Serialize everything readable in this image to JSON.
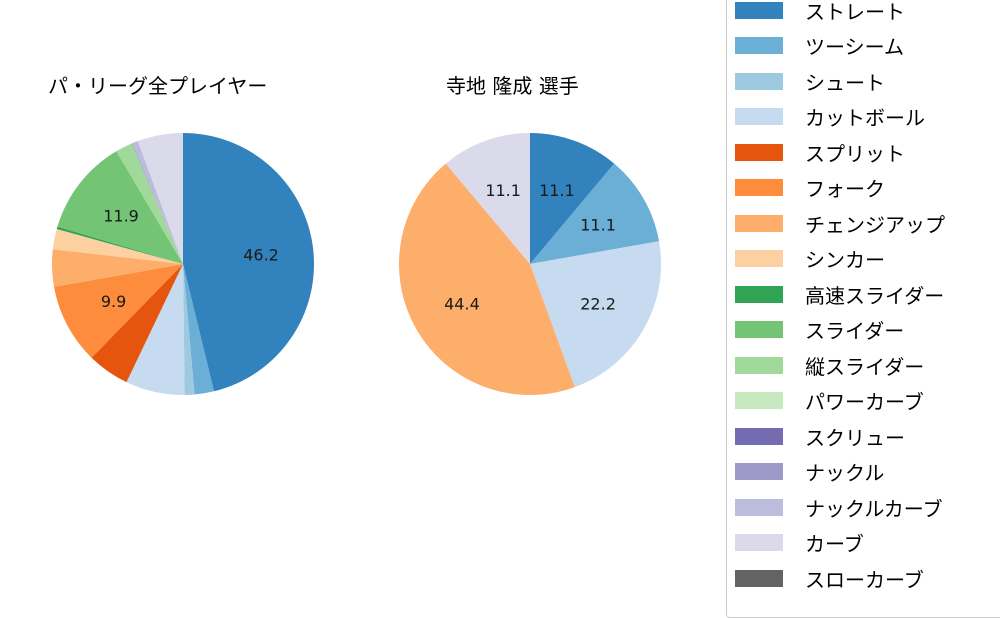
{
  "chart_data": [
    {
      "type": "pie",
      "title": "パ・リーグ全プレイヤー",
      "categories": [
        "ストレート",
        "ツーシーム",
        "シュート",
        "カットボール",
        "スプリット",
        "フォーク",
        "チェンジアップ",
        "シンカー",
        "高速スライダー",
        "スライダー",
        "縦スライダー",
        "パワーカーブ",
        "スクリュー",
        "ナックル",
        "ナックルカーブ",
        "カーブ",
        "スローカーブ"
      ],
      "values": [
        46.2,
        2.4,
        1.2,
        7.3,
        5.2,
        9.9,
        4.6,
        2.5,
        0.3,
        11.9,
        2.1,
        0.0,
        0.0,
        0.1,
        0.7,
        5.6,
        0.0
      ],
      "labels_shown": {
        "ストレート": "46.2",
        "フォーク": "9.9",
        "スライダー": "11.9"
      },
      "start_angle": 90,
      "direction": "clockwise"
    },
    {
      "type": "pie",
      "title": "寺地 隆成  選手",
      "categories": [
        "ストレート",
        "ツーシーム",
        "カットボール",
        "チェンジアップ",
        "カーブ"
      ],
      "values": [
        11.1,
        11.1,
        22.2,
        44.4,
        11.1
      ],
      "labels_shown": {
        "ストレート": "11.1",
        "ツーシーム": "11.1",
        "カットボール": "22.2",
        "チェンジアップ": "44.4",
        "カーブ": "11.1"
      },
      "start_angle": 90,
      "direction": "clockwise"
    }
  ],
  "titles": {
    "left": "パ・リーグ全プレイヤー",
    "right": "寺地 隆成  選手"
  },
  "legend": {
    "items": [
      {
        "label": "ストレート",
        "color": "#3182bd"
      },
      {
        "label": "ツーシーム",
        "color": "#6baed6"
      },
      {
        "label": "シュート",
        "color": "#9ecae1"
      },
      {
        "label": "カットボール",
        "color": "#c6dbef"
      },
      {
        "label": "スプリット",
        "color": "#e6550d"
      },
      {
        "label": "フォーク",
        "color": "#fd8d3c"
      },
      {
        "label": "チェンジアップ",
        "color": "#fdae6b"
      },
      {
        "label": "シンカー",
        "color": "#fdd0a2"
      },
      {
        "label": "高速スライダー",
        "color": "#31a354"
      },
      {
        "label": "スライダー",
        "color": "#74c476"
      },
      {
        "label": "縦スライダー",
        "color": "#a1d99b"
      },
      {
        "label": "パワーカーブ",
        "color": "#c7e9c0"
      },
      {
        "label": "スクリュー",
        "color": "#756bb1"
      },
      {
        "label": "ナックル",
        "color": "#9e9ac8"
      },
      {
        "label": "ナックルカーブ",
        "color": "#bcbddc"
      },
      {
        "label": "カーブ",
        "color": "#dadaeb"
      },
      {
        "label": "スローカーブ",
        "color": "#636363"
      }
    ]
  }
}
